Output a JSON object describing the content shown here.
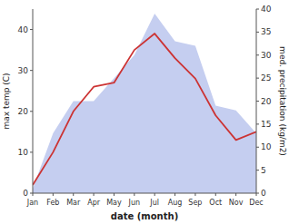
{
  "chart_data": {
    "type": "line",
    "categories": [
      "Jan",
      "Feb",
      "Mar",
      "Apr",
      "May",
      "Jun",
      "Jul",
      "Aug",
      "Sep",
      "Oct",
      "Nov",
      "Dec"
    ],
    "series": [
      {
        "type": "area",
        "color": "#c5cef0",
        "axis": "y2",
        "values": [
          1,
          13,
          20,
          20,
          25,
          30,
          39,
          33,
          32,
          19,
          18,
          13
        ]
      },
      {
        "type": "line",
        "color": "#cc3333",
        "values": [
          2,
          10,
          20,
          26,
          27,
          35,
          39,
          33,
          28,
          19,
          13,
          15
        ]
      }
    ],
    "xlabel": "date (month)",
    "ylabel": "max temp (C)",
    "y2label": "med. precipitation (kg/m2)",
    "ylim": [
      0,
      45
    ],
    "yticks": [
      0,
      10,
      20,
      30,
      40
    ],
    "y2lim": [
      0,
      40
    ],
    "y2ticks": [
      0,
      5,
      10,
      15,
      20,
      25,
      30,
      35,
      40
    ]
  }
}
